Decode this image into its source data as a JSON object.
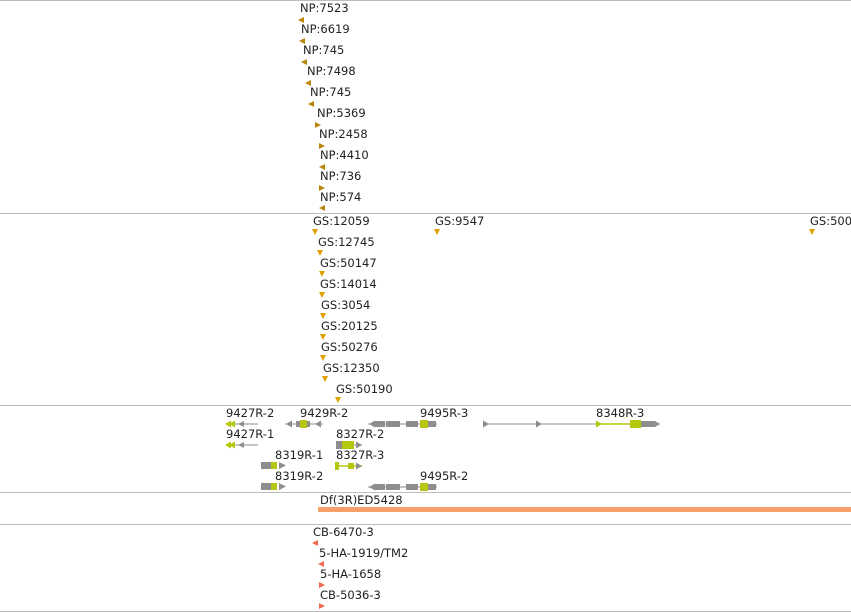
{
  "colors": {
    "np_marker": "#b8860b",
    "gs_marker": "#e0a000",
    "gene_exon": "#8e8e8e",
    "gene_cds": "#b5c70f",
    "intron": "#8e8e8e",
    "deletion": "#f4a06a",
    "insertion": "#f26a4f",
    "separator": "#bdbdbd"
  },
  "np_track": {
    "features": [
      {
        "label": "NP:7523",
        "marker": "left"
      },
      {
        "label": "NP:6619",
        "marker": "left"
      },
      {
        "label": "NP:745",
        "marker": "left"
      },
      {
        "label": "NP:7498",
        "marker": "left"
      },
      {
        "label": "NP:745",
        "marker": "left"
      },
      {
        "label": "NP:5369",
        "marker": "right"
      },
      {
        "label": "NP:2458",
        "marker": "right"
      },
      {
        "label": "NP:4410",
        "marker": "left"
      },
      {
        "label": "NP:736",
        "marker": "right"
      },
      {
        "label": "NP:574",
        "marker": "left"
      }
    ]
  },
  "gs_track": {
    "features": [
      {
        "label": "GS:12059",
        "marker": "down"
      },
      {
        "label": "GS:9547",
        "marker": "down"
      },
      {
        "label": "GS:500",
        "marker": "down"
      },
      {
        "label": "GS:12745",
        "marker": "down"
      },
      {
        "label": "GS:50147",
        "marker": "down"
      },
      {
        "label": "GS:14014",
        "marker": "down"
      },
      {
        "label": "GS:3054",
        "marker": "down"
      },
      {
        "label": "GS:20125",
        "marker": "down"
      },
      {
        "label": "GS:50276",
        "marker": "down"
      },
      {
        "label": "GS:12350",
        "marker": "down"
      },
      {
        "label": "GS:50190",
        "marker": "down"
      }
    ]
  },
  "gene_track": {
    "transcripts": [
      {
        "label": "9427R-2"
      },
      {
        "label": "9429R-2"
      },
      {
        "label": "9495R-3"
      },
      {
        "label": "8348R-3"
      },
      {
        "label": "9427R-1"
      },
      {
        "label": "8327R-2"
      },
      {
        "label": "8319R-1"
      },
      {
        "label": "8327R-3"
      },
      {
        "label": "8319R-2"
      },
      {
        "label": "9495R-2"
      }
    ]
  },
  "deletion_track": {
    "features": [
      {
        "label": "Df(3R)ED5428"
      }
    ]
  },
  "insertion_track": {
    "features": [
      {
        "label": "CB-6470-3",
        "marker": "left"
      },
      {
        "label": "5-HA-1919/TM2",
        "marker": "left"
      },
      {
        "label": "5-HA-1658",
        "marker": "right"
      },
      {
        "label": "CB-5036-3",
        "marker": "right"
      }
    ]
  }
}
